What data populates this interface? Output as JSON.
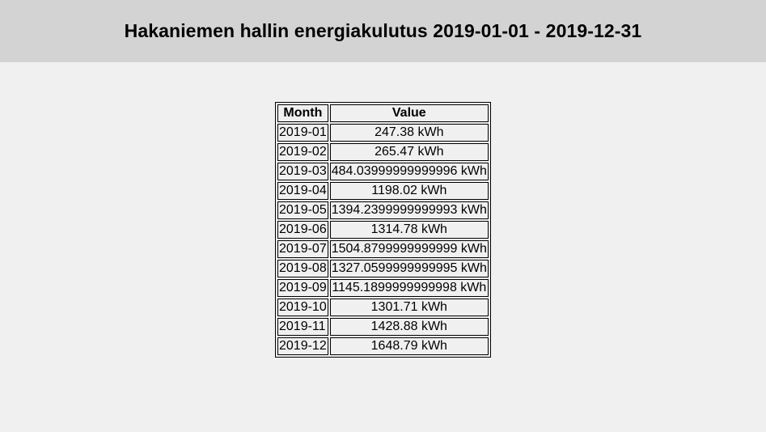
{
  "header": {
    "title": "Hakaniemen hallin energiakulutus 2019-01-01 - 2019-12-31"
  },
  "table": {
    "columns": [
      "Month",
      "Value"
    ],
    "rows": [
      {
        "month": "2019-01",
        "value": "247.38 kWh"
      },
      {
        "month": "2019-02",
        "value": "265.47 kWh"
      },
      {
        "month": "2019-03",
        "value": "484.03999999999996 kWh"
      },
      {
        "month": "2019-04",
        "value": "1198.02 kWh"
      },
      {
        "month": "2019-05",
        "value": "1394.2399999999993 kWh"
      },
      {
        "month": "2019-06",
        "value": "1314.78 kWh"
      },
      {
        "month": "2019-07",
        "value": "1504.8799999999999 kWh"
      },
      {
        "month": "2019-08",
        "value": "1327.0599999999995 kWh"
      },
      {
        "month": "2019-09",
        "value": "1145.1899999999998 kWh"
      },
      {
        "month": "2019-10",
        "value": "1301.71 kWh"
      },
      {
        "month": "2019-11",
        "value": "1428.88 kWh"
      },
      {
        "month": "2019-12",
        "value": "1648.79 kWh"
      }
    ]
  }
}
